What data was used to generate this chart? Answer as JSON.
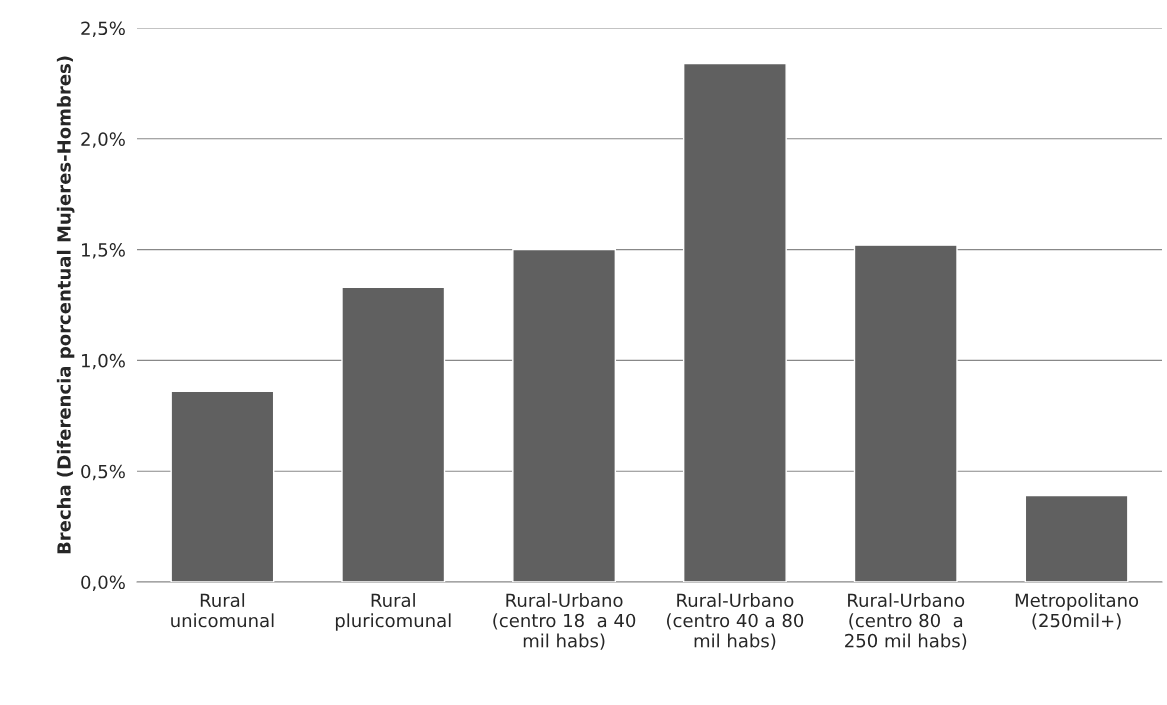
{
  "chart_data": {
    "type": "bar",
    "ylabel": "Brecha (Diferencia porcentual Mujeres-Hombres)",
    "categories": [
      "Rural\nunicomunal",
      "Rural\npluricomunal",
      "Rural-Urbano\n(centro 18  a 40\nmil habs)",
      "Rural-Urbano\n(centro 40 a 80\nmil habs)",
      "Rural-Urbano\n(centro 80  a\n250 mil habs)",
      "Metropolitano\n(250mil+)"
    ],
    "values": [
      0.86,
      1.33,
      1.5,
      2.34,
      1.52,
      0.39
    ],
    "color": "#606060",
    "ylim": [
      0,
      2.5
    ],
    "yticks": [
      {
        "value": 0,
        "label": "0,0%"
      },
      {
        "value": 0.5,
        "label": "0,5%"
      },
      {
        "value": 1.0,
        "label": "1,0%"
      },
      {
        "value": 1.5,
        "label": "1,5%"
      },
      {
        "value": 2.0,
        "label": "2,0%"
      },
      {
        "value": 2.5,
        "label": "2,5%"
      }
    ],
    "grid": "y",
    "legend": false
  }
}
